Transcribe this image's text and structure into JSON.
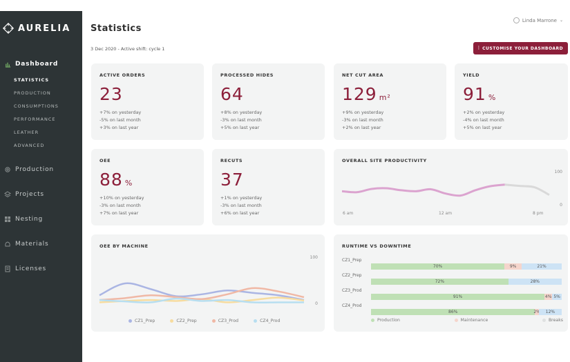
{
  "app": {
    "name": "AURELIA"
  },
  "colors": {
    "accent": "#8c1f3a",
    "sidebar": "#2d3436",
    "production": "#bfe0b5",
    "maintenance": "#f5d5cc",
    "breaks": "#cde3f5"
  },
  "user": {
    "name": "Linda Marrone"
  },
  "sidebar": {
    "main": [
      {
        "label": "Dashboard",
        "icon": "bar-chart-icon"
      },
      {
        "label": "Production",
        "icon": "gear-icon"
      },
      {
        "label": "Projects",
        "icon": "layers-icon"
      },
      {
        "label": "Nesting",
        "icon": "grid-icon"
      },
      {
        "label": "Materials",
        "icon": "materials-icon"
      },
      {
        "label": "Licenses",
        "icon": "document-icon"
      }
    ],
    "sub": [
      "STATISTICS",
      "PRODUCTION",
      "CONSUMPTIONS",
      "PERFORMANCE",
      "LEATHER",
      "ADVANCED"
    ]
  },
  "header": {
    "title": "Statistics",
    "subtitle": "3 Dec 2020 - Active shift: cycle 1",
    "customise_label": "CUSTOMISE YOUR DASHBOARD"
  },
  "kpis": [
    {
      "title": "ACTIVE ORDERS",
      "value": "23",
      "unit": "",
      "stats": [
        "+7% on yesterday",
        "-5% on last month",
        "+3% on last year"
      ]
    },
    {
      "title": "PROCESSED HIDES",
      "value": "64",
      "unit": "",
      "stats": [
        "+8% on yesterday",
        "-3% on last month",
        "+5% on last year"
      ]
    },
    {
      "title": "NET CUT AREA",
      "value": "129",
      "unit": "m²",
      "stats": [
        "+9% on yesterday",
        "-3% on last month",
        "+2% on last year"
      ]
    },
    {
      "title": "YIELD",
      "value": "91",
      "unit": "%",
      "stats": [
        "+2% on yesterday",
        "-4% on last month",
        "+5% on last year"
      ]
    },
    {
      "title": "OEE",
      "value": "88",
      "unit": "%",
      "stats": [
        "+10% on yesterday",
        "-3% on last month",
        "+7% on last year"
      ]
    },
    {
      "title": "RECUTS",
      "value": "37",
      "unit": "",
      "stats": [
        "+1% on yesterday",
        "-3% on last month",
        "+6% on last year"
      ]
    }
  ],
  "productivity": {
    "title": "OVERALL SITE PRODUCTIVITY",
    "ymax_label": "100",
    "ymin_label": "0",
    "x_labels": [
      "6 am",
      "12 am",
      "8 pm"
    ]
  },
  "oee_machine": {
    "title": "OEE BY MACHINE",
    "ymax_label": "100",
    "ymin_label": "0",
    "legend": [
      "CZ1_Prep",
      "CZ2_Prep",
      "CZ3_Prod",
      "CZ4_Prod"
    ]
  },
  "runtime": {
    "title": "RUNTIME VS DOWNTIME",
    "legend": [
      "Production",
      "Maintenance",
      "Breaks"
    ]
  },
  "chart_data": [
    {
      "type": "line",
      "title": "OVERALL SITE PRODUCTIVITY",
      "x": [
        0,
        1,
        2,
        3,
        4,
        5,
        6,
        7,
        8,
        9,
        10,
        11,
        12,
        13,
        14
      ],
      "series": [
        {
          "values": [
            43,
            40,
            50,
            52,
            46,
            43,
            49,
            36,
            30,
            46,
            58,
            63,
            59,
            55,
            32
          ]
        }
      ],
      "highlight_until_index": 11,
      "ylim": [
        0,
        100
      ],
      "x_tick_labels": [
        "6 am",
        "12 am",
        "8 pm"
      ],
      "grid": false
    },
    {
      "type": "line",
      "title": "OEE BY MACHINE",
      "x": [
        0,
        1,
        2,
        3,
        4,
        5,
        6,
        7,
        8
      ],
      "series": [
        {
          "name": "CZ1_Prep",
          "color": "#aab5e3",
          "values": [
            20,
            45,
            33,
            18,
            22,
            30,
            25,
            20,
            10
          ]
        },
        {
          "name": "CZ2_Prep",
          "color": "#f7dc9f",
          "values": [
            5,
            8,
            10,
            8,
            12,
            5,
            10,
            15,
            9
          ]
        },
        {
          "name": "CZ3_Prod",
          "color": "#f0b8a5",
          "values": [
            10,
            14,
            20,
            16,
            12,
            22,
            35,
            28,
            16
          ]
        },
        {
          "name": "CZ4_Prod",
          "color": "#b7def0",
          "values": [
            10,
            7,
            5,
            13,
            8,
            10,
            5,
            5,
            5
          ]
        }
      ],
      "ylim": [
        0,
        100
      ],
      "legend": "bottom"
    },
    {
      "type": "bar",
      "title": "RUNTIME VS DOWNTIME",
      "orientation": "horizontal-stacked",
      "categories": [
        "CZ1_Prep",
        "CZ2_Prep",
        "CZ3_Prod",
        "CZ4_Prod"
      ],
      "series": [
        {
          "name": "Production",
          "values": [
            70,
            72,
            91,
            86
          ],
          "labels": [
            "70%",
            "72%",
            "91%",
            "86%"
          ]
        },
        {
          "name": "Maintenance",
          "values": [
            9,
            0,
            4,
            2
          ],
          "labels": [
            "9%",
            "",
            "4%",
            "2%"
          ]
        },
        {
          "name": "Breaks",
          "values": [
            21,
            28,
            5,
            12
          ],
          "labels": [
            "21%",
            "28%",
            "5%",
            "12%"
          ]
        }
      ],
      "legend": "bottom"
    }
  ]
}
